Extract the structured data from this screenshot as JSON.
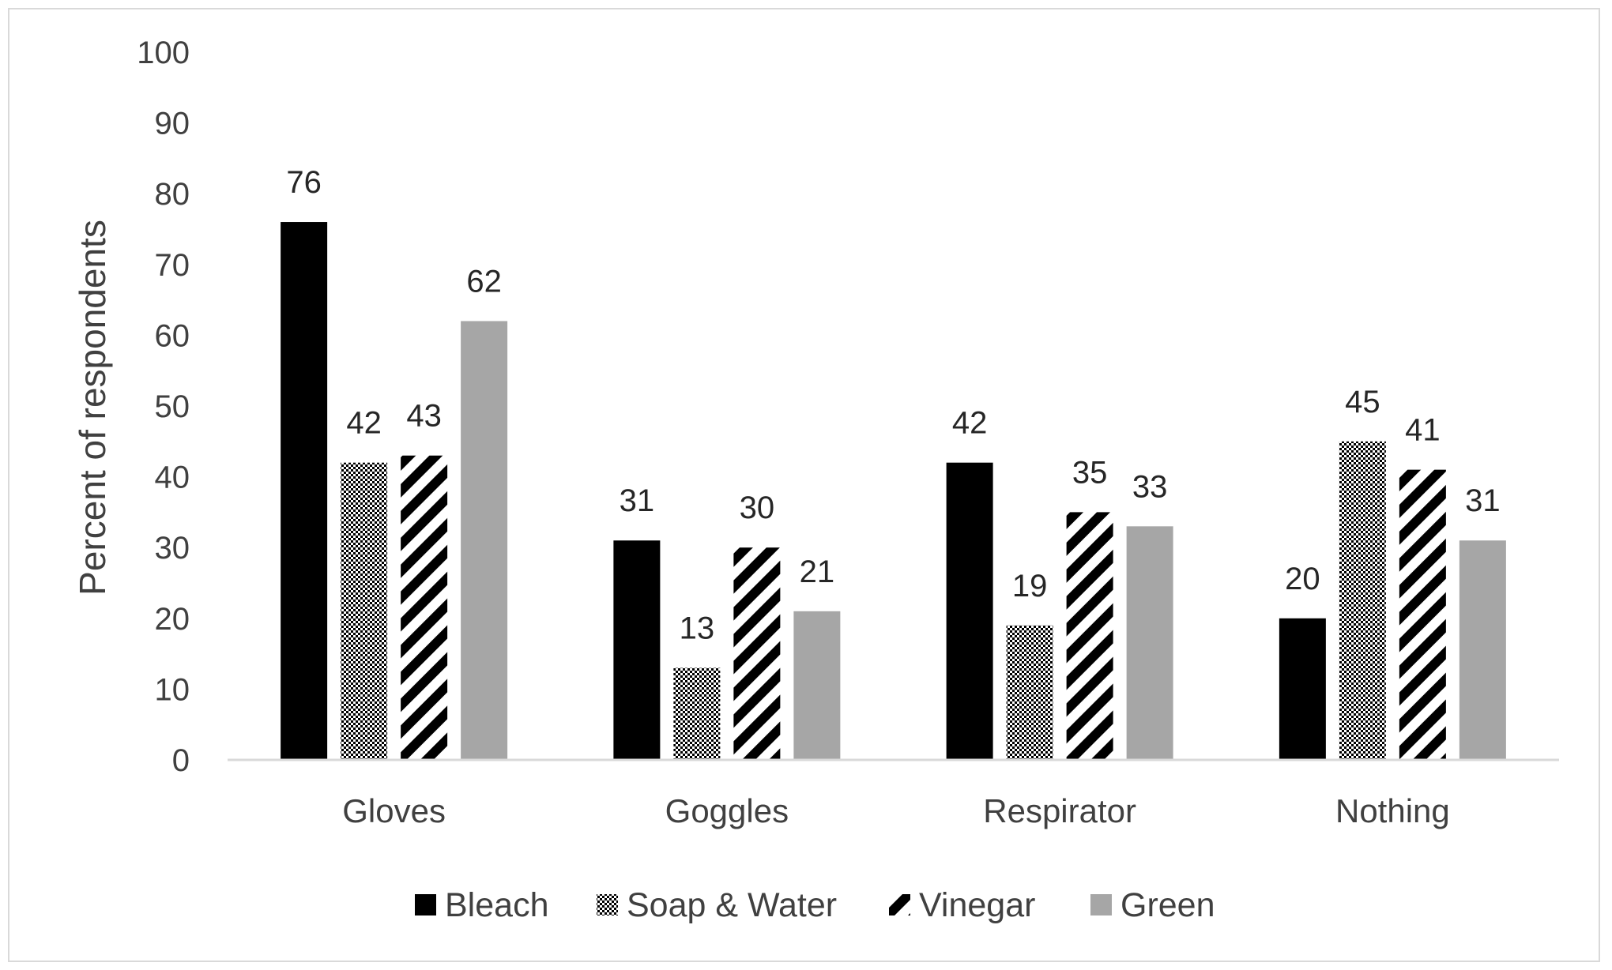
{
  "chart_data": {
    "type": "bar",
    "title": "",
    "xlabel": "",
    "ylabel": "Percent of respondents",
    "ylim": [
      0,
      100
    ],
    "yticks": [
      "0",
      "10",
      "20",
      "30",
      "40",
      "50",
      "60",
      "70",
      "80",
      "90",
      "100"
    ],
    "grid": false,
    "legend_position": "bottom",
    "categories": [
      "Gloves",
      "Goggles",
      "Respirator",
      "Nothing"
    ],
    "series": [
      {
        "name": "Bleach",
        "values": [
          76,
          31,
          42,
          20
        ],
        "color": "#000000",
        "pattern": "solid"
      },
      {
        "name": "Soap & Water",
        "values": [
          42,
          13,
          19,
          45
        ],
        "color": "#000000",
        "pattern": "dots"
      },
      {
        "name": "Vinegar",
        "values": [
          43,
          30,
          35,
          41
        ],
        "color": "#000000",
        "pattern": "diagonal-stripes"
      },
      {
        "name": "Green",
        "values": [
          62,
          21,
          33,
          31
        ],
        "color": "#a6a6a6",
        "pattern": "solid"
      }
    ],
    "data_labels": true
  }
}
